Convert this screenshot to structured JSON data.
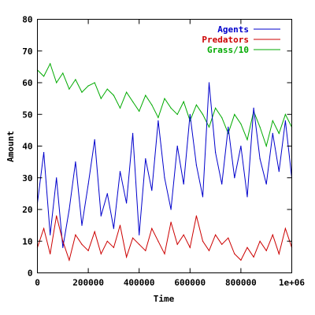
{
  "chart_data": {
    "type": "line",
    "title": "",
    "xlabel": "Time",
    "ylabel": "Amount",
    "xlim": [
      0,
      1000000
    ],
    "ylim": [
      0,
      80
    ],
    "x_ticks": [
      0,
      200000,
      400000,
      600000,
      800000,
      1000000
    ],
    "x_tick_labels": [
      "0",
      "200000",
      "400000",
      "600000",
      "800000",
      "1e+06"
    ],
    "y_ticks": [
      0,
      10,
      20,
      30,
      40,
      50,
      60,
      70,
      80
    ],
    "y_tick_labels": [
      "0",
      "10",
      "20",
      "30",
      "40",
      "50",
      "60",
      "70",
      "80"
    ],
    "grid": false,
    "legend_position": "top-right",
    "series": [
      {
        "name": "Agents",
        "color": "#0000cc",
        "x": [
          0,
          25000,
          50000,
          75000,
          100000,
          125000,
          150000,
          175000,
          200000,
          225000,
          250000,
          275000,
          300000,
          325000,
          350000,
          375000,
          400000,
          425000,
          450000,
          475000,
          500000,
          525000,
          550000,
          575000,
          600000,
          625000,
          650000,
          675000,
          700000,
          725000,
          750000,
          775000,
          800000,
          825000,
          850000,
          875000,
          900000,
          925000,
          950000,
          975000,
          1000000
        ],
        "values": [
          22,
          38,
          12,
          30,
          8,
          20,
          35,
          15,
          28,
          42,
          18,
          25,
          14,
          32,
          22,
          44,
          12,
          36,
          26,
          48,
          30,
          20,
          40,
          28,
          50,
          34,
          24,
          60,
          38,
          28,
          46,
          30,
          40,
          24,
          52,
          36,
          28,
          44,
          32,
          48,
          30
        ]
      },
      {
        "name": "Predators",
        "color": "#cc0000",
        "x": [
          0,
          25000,
          50000,
          75000,
          100000,
          125000,
          150000,
          175000,
          200000,
          225000,
          250000,
          275000,
          300000,
          325000,
          350000,
          375000,
          400000,
          425000,
          450000,
          475000,
          500000,
          525000,
          550000,
          575000,
          600000,
          625000,
          650000,
          675000,
          700000,
          725000,
          750000,
          775000,
          800000,
          825000,
          850000,
          875000,
          900000,
          925000,
          950000,
          975000,
          1000000
        ],
        "values": [
          8,
          14,
          6,
          18,
          10,
          4,
          12,
          9,
          7,
          13,
          6,
          10,
          8,
          15,
          5,
          11,
          9,
          7,
          14,
          10,
          6,
          16,
          9,
          12,
          8,
          18,
          10,
          7,
          12,
          9,
          11,
          6,
          4,
          8,
          5,
          10,
          7,
          12,
          6,
          14,
          8
        ]
      },
      {
        "name": "Grass/10",
        "color": "#00aa00",
        "x": [
          0,
          25000,
          50000,
          75000,
          100000,
          125000,
          150000,
          175000,
          200000,
          225000,
          250000,
          275000,
          300000,
          325000,
          350000,
          375000,
          400000,
          425000,
          450000,
          475000,
          500000,
          525000,
          550000,
          575000,
          600000,
          625000,
          650000,
          675000,
          700000,
          725000,
          750000,
          775000,
          800000,
          825000,
          850000,
          875000,
          900000,
          925000,
          950000,
          975000,
          1000000
        ],
        "values": [
          64,
          62,
          66,
          60,
          63,
          58,
          61,
          57,
          59,
          60,
          55,
          58,
          56,
          52,
          57,
          54,
          51,
          56,
          53,
          49,
          55,
          52,
          50,
          54,
          48,
          53,
          50,
          46,
          52,
          49,
          44,
          50,
          47,
          42,
          51,
          46,
          40,
          48,
          44,
          50,
          46
        ]
      }
    ]
  }
}
